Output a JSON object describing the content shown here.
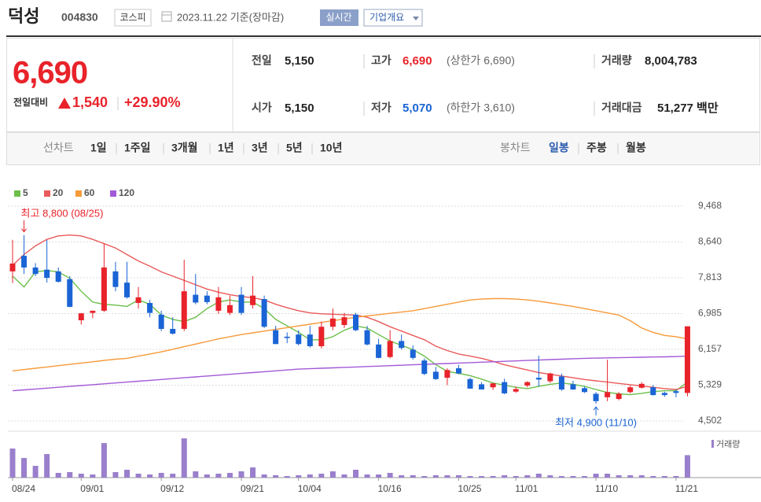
{
  "header": {
    "name": "덕성",
    "code": "004830",
    "market": "코스피",
    "date": "2023.11.22 기준(장마감)",
    "realtime": "실시간",
    "overview": "기업개요"
  },
  "quote": {
    "price": "6,690",
    "change_label": "전일대비",
    "change": "1,540",
    "change_rate": "+29.90%",
    "items": [
      {
        "label": "전일",
        "value": "5,150"
      },
      {
        "label": "고가",
        "value": "6,690",
        "note": "(상한가 6,690)",
        "color": "#e8232a"
      },
      {
        "label": "거래량",
        "value": "8,004,783"
      },
      {
        "label": "시가",
        "value": "5,150"
      },
      {
        "label": "저가",
        "value": "5,070",
        "note": "(하한가 3,610)",
        "color": "#1a64d5"
      },
      {
        "label": "거래대금",
        "value": "51,277 백만"
      }
    ]
  },
  "tabs": {
    "line_label": "선차트",
    "line_periods": [
      "1일",
      "1주일",
      "3개월",
      "1년",
      "3년",
      "5년",
      "10년"
    ],
    "candle_label": "봉차트",
    "candle_periods": [
      "일봉",
      "주봉",
      "월봉"
    ]
  },
  "chart_data": {
    "type": "candlestick",
    "up_color": "#e8232a",
    "down_color": "#1a64d5",
    "categories": [
      "08/24",
      null,
      null,
      null,
      null,
      null,
      "09/01",
      null,
      null,
      null,
      null,
      null,
      null,
      "09/12",
      null,
      null,
      null,
      null,
      null,
      null,
      "09/21",
      null,
      null,
      null,
      null,
      "10/04",
      null,
      null,
      null,
      null,
      null,
      null,
      "10/16",
      null,
      null,
      null,
      null,
      null,
      null,
      "10/25",
      null,
      null,
      null,
      null,
      "11/01",
      null,
      null,
      null,
      null,
      null,
      null,
      "11/10",
      null,
      null,
      null,
      null,
      null,
      null,
      "11/21",
      null
    ],
    "open": [
      7960,
      8320,
      8050,
      8000,
      7960,
      7780,
      6830,
      7000,
      7050,
      7960,
      7700,
      7230,
      7230,
      6960,
      6630,
      6630,
      7420,
      7400,
      7050,
      7000,
      7420,
      7180,
      7320,
      6600,
      6450,
      6500,
      6500,
      6230,
      6680,
      6720,
      6960,
      6600,
      6270,
      5980,
      6350,
      6150,
      5900,
      5640,
      5500,
      5720,
      5470,
      5350,
      5280,
      5400,
      5180,
      5320,
      5500,
      5420,
      5530,
      5350,
      5260,
      5130,
      5050,
      5010,
      5170,
      5270,
      5280,
      5150,
      5190,
      5150
    ],
    "high": [
      8690,
      8800,
      8150,
      8690,
      8050,
      7850,
      7000,
      7050,
      8600,
      8180,
      8180,
      7600,
      7300,
      7050,
      6900,
      8230,
      7900,
      7500,
      7600,
      7400,
      7600,
      7850,
      7400,
      6700,
      6550,
      6600,
      6700,
      6800,
      7100,
      7000,
      7000,
      6700,
      6400,
      6600,
      6500,
      6250,
      5950,
      5750,
      5720,
      5800,
      5500,
      5400,
      5380,
      5480,
      5300,
      5420,
      6010,
      5620,
      5600,
      5430,
      5300,
      5170,
      5920,
      5170,
      5320,
      5400,
      5330,
      5180,
      5230,
      6690
    ],
    "low": [
      7690,
      7900,
      7850,
      7700,
      7700,
      7130,
      6730,
      6880,
      7020,
      7500,
      7330,
      7100,
      6900,
      6580,
      6500,
      6580,
      7200,
      7200,
      6980,
      6950,
      6950,
      7100,
      6650,
      6280,
      6300,
      6250,
      6200,
      6180,
      6600,
      6650,
      6580,
      6250,
      5950,
      5950,
      6150,
      5920,
      5560,
      5450,
      5330,
      5580,
      5250,
      5230,
      5220,
      5120,
      5150,
      5280,
      5300,
      5380,
      5200,
      5220,
      5150,
      4900,
      4960,
      4980,
      5140,
      5250,
      5090,
      5060,
      5050,
      5070
    ],
    "close": [
      8140,
      8050,
      7900,
      7810,
      7720,
      7140,
      6990,
      7050,
      8050,
      7600,
      7360,
      7360,
      7000,
      6630,
      6520,
      7500,
      7240,
      7250,
      7360,
      7180,
      7000,
      7400,
      6680,
      6280,
      6420,
      6280,
      6230,
      6680,
      6870,
      6900,
      6600,
      6270,
      5960,
      6350,
      6190,
      5960,
      5590,
      5470,
      5680,
      5600,
      5250,
      5230,
      5370,
      5140,
      5240,
      5400,
      5460,
      5600,
      5230,
      5230,
      5170,
      4960,
      5170,
      5130,
      5280,
      5360,
      5100,
      5100,
      5150,
      6690
    ],
    "lines": [
      {
        "name": "5",
        "color": "#6bbf4a",
        "values": [
          7850,
          7600,
          7950,
          7980,
          7950,
          7800,
          7500,
          7250,
          7200,
          7180,
          7150,
          7300,
          7200,
          6950,
          6850,
          6800,
          6900,
          7100,
          7250,
          7300,
          7250,
          7250,
          7100,
          6850,
          6700,
          6550,
          6380,
          6380,
          6450,
          6600,
          6700,
          6650,
          6500,
          6350,
          6250,
          6150,
          6000,
          5800,
          5650,
          5600,
          5550,
          5470,
          5380,
          5330,
          5280,
          5250,
          5300,
          5350,
          5380,
          5350,
          5300,
          5230,
          5160,
          5130,
          5110,
          5140,
          5180,
          5200,
          5200,
          5400
        ]
      },
      {
        "name": "20",
        "color": "#ea5a5a",
        "values": [
          8100,
          8350,
          8550,
          8700,
          8780,
          8800,
          8780,
          8700,
          8600,
          8500,
          8350,
          8200,
          8080,
          7950,
          7850,
          7750,
          7650,
          7550,
          7480,
          7420,
          7380,
          7350,
          7300,
          7200,
          7120,
          7050,
          7000,
          6980,
          6970,
          6960,
          6950,
          6900,
          6800,
          6680,
          6580,
          6480,
          6380,
          6230,
          6130,
          6050,
          6000,
          5950,
          5880,
          5800,
          5740,
          5680,
          5620,
          5580,
          5540,
          5500,
          5460,
          5430,
          5400,
          5370,
          5340,
          5310,
          5280,
          5250,
          5230,
          5300
        ]
      },
      {
        "name": "60",
        "color": "#f79a3a",
        "values": [
          5660,
          5690,
          5720,
          5750,
          5780,
          5810,
          5840,
          5870,
          5900,
          5930,
          5950,
          6000,
          6050,
          6100,
          6160,
          6220,
          6280,
          6340,
          6400,
          6450,
          6500,
          6540,
          6580,
          6620,
          6660,
          6700,
          6740,
          6780,
          6820,
          6860,
          6900,
          6930,
          6960,
          6990,
          7020,
          7050,
          7100,
          7150,
          7200,
          7250,
          7300,
          7320,
          7330,
          7330,
          7320,
          7300,
          7270,
          7230,
          7190,
          7150,
          7100,
          7050,
          7000,
          6950,
          6820,
          6650,
          6550,
          6480,
          6450,
          6400
        ]
      },
      {
        "name": "120",
        "color": "#a35ad8",
        "values": [
          5200,
          5220,
          5240,
          5260,
          5280,
          5300,
          5320,
          5340,
          5360,
          5380,
          5400,
          5420,
          5440,
          5460,
          5480,
          5500,
          5520,
          5540,
          5560,
          5580,
          5600,
          5620,
          5640,
          5660,
          5680,
          5700,
          5710,
          5720,
          5730,
          5740,
          5750,
          5760,
          5770,
          5780,
          5790,
          5800,
          5810,
          5820,
          5830,
          5840,
          5850,
          5860,
          5870,
          5880,
          5890,
          5900,
          5910,
          5920,
          5930,
          5940,
          5950,
          5955,
          5960,
          5965,
          5970,
          5975,
          5980,
          5985,
          5990,
          6000
        ]
      }
    ],
    "volume": {
      "name": "거래량",
      "color": "#9a7fcc",
      "vlim": [
        0,
        16000000
      ],
      "values": [
        10360000,
        7000000,
        4200000,
        8400000,
        1680000,
        1960000,
        1400000,
        1120000,
        12320000,
        1960000,
        2800000,
        1400000,
        1120000,
        1680000,
        1400000,
        14000000,
        2240000,
        1120000,
        1400000,
        1680000,
        2240000,
        3640000,
        1120000,
        840000,
        560000,
        840000,
        1120000,
        1400000,
        2240000,
        1120000,
        2800000,
        1120000,
        1120000,
        1680000,
        840000,
        840000,
        560000,
        840000,
        840000,
        840000,
        560000,
        560000,
        560000,
        840000,
        560000,
        840000,
        1400000,
        840000,
        560000,
        560000,
        560000,
        1400000,
        1400000,
        840000,
        840000,
        840000,
        560000,
        560000,
        560000,
        8004783
      ]
    },
    "ylim": [
      4502,
      9468
    ],
    "yticks": [
      {
        "value": 9468,
        "label": "9,468"
      },
      {
        "value": 8640,
        "label": "8,640"
      },
      {
        "value": 7813,
        "label": "7,813"
      },
      {
        "value": 6985,
        "label": "6,985"
      },
      {
        "value": 6157,
        "label": "6,157"
      },
      {
        "value": 5329,
        "label": "5,329"
      },
      {
        "value": 4502,
        "label": "4,502"
      }
    ],
    "grid": true,
    "annotations": [
      {
        "text": "최고 8,800 (08/25)",
        "color": "#e8232a"
      },
      {
        "text": "최저 4,900 (11/10)",
        "color": "#1a64d5"
      }
    ]
  }
}
